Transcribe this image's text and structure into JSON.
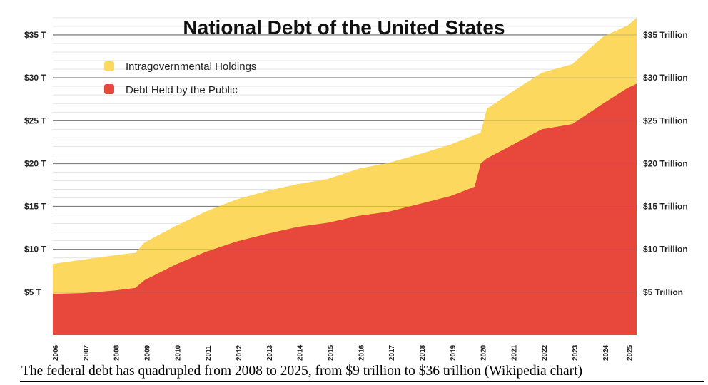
{
  "chart_data": {
    "type": "area",
    "title": "National Debt of the United States",
    "x_categories": [
      "2006",
      "2007",
      "2008",
      "2009",
      "2010",
      "2011",
      "2012",
      "2013",
      "2014",
      "2015",
      "2016",
      "2017",
      "2018",
      "2019",
      "2020",
      "2021",
      "2022",
      "2023",
      "2024",
      "2025"
    ],
    "ylim": [
      0,
      37
    ],
    "y_ticks_left": [
      "$5 T",
      "$10 T",
      "$15 T",
      "$20 T",
      "$25 T",
      "$30 T",
      "$35 T"
    ],
    "y_ticks_right": [
      "$5 Trillion",
      "$10 Trillion",
      "$15 Trillion",
      "$20 Trillion",
      "$25 Trillion",
      "$30 Trillion",
      "$35 Trillion"
    ],
    "y_tick_values": [
      5,
      10,
      15,
      20,
      25,
      30,
      35
    ],
    "grid": true,
    "legend_position": "top-left",
    "series": [
      {
        "name": "Intragovernmental Holdings",
        "color": "#fcd95e",
        "x": [
          2006.0,
          2007.0,
          2008.0,
          2008.7,
          2009.0,
          2010.0,
          2011.0,
          2012.0,
          2013.0,
          2014.0,
          2015.0,
          2016.0,
          2017.0,
          2018.0,
          2019.0,
          2020.0,
          2020.2,
          2021.0,
          2022.0,
          2023.0,
          2024.0,
          2024.8,
          2025.1
        ],
        "total": [
          8.3,
          8.8,
          9.3,
          9.6,
          10.8,
          12.7,
          14.4,
          15.8,
          16.8,
          17.6,
          18.2,
          19.4,
          20.1,
          21.1,
          22.2,
          23.6,
          26.4,
          28.3,
          30.6,
          31.6,
          34.8,
          36.1,
          37.0
        ]
      },
      {
        "name": "Debt Held by the Public",
        "color": "#e8473c",
        "x": [
          2006.0,
          2007.0,
          2008.0,
          2008.7,
          2009.0,
          2010.0,
          2011.0,
          2012.0,
          2013.0,
          2014.0,
          2015.0,
          2016.0,
          2017.0,
          2018.0,
          2019.0,
          2019.8,
          2020.0,
          2020.2,
          2021.0,
          2022.0,
          2023.0,
          2024.0,
          2024.8,
          2025.1
        ],
        "values": [
          4.8,
          4.9,
          5.2,
          5.5,
          6.4,
          8.2,
          9.7,
          10.9,
          11.8,
          12.6,
          13.1,
          13.9,
          14.4,
          15.3,
          16.2,
          17.3,
          20.0,
          20.6,
          22.1,
          24.0,
          24.6,
          27.0,
          28.8,
          29.3
        ]
      }
    ]
  },
  "caption": "The federal debt has quadrupled from 2008 to 2025, from $9 trillion to $36 trillion (Wikipedia chart)"
}
